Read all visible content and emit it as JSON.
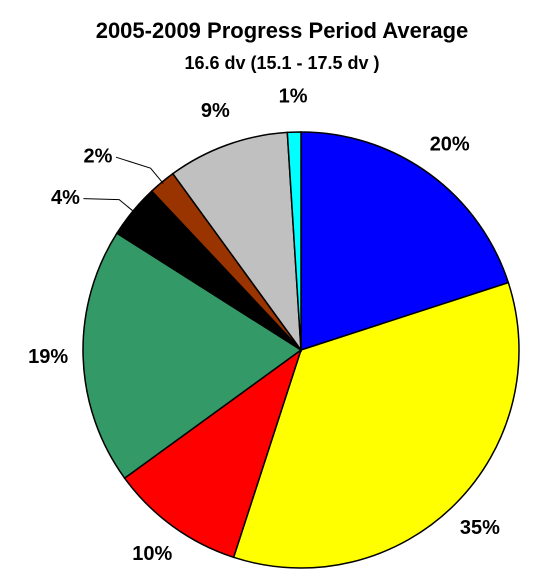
{
  "chart_data": {
    "type": "pie",
    "title": "2005-2009 Progress Period Average",
    "subtitle": "16.6 dv (15.1 - 17.5 dv )",
    "values": [
      20,
      35,
      10,
      19,
      4,
      2,
      9,
      1
    ],
    "value_labels": [
      "20%",
      "35%",
      "10%",
      "19%",
      "4%",
      "2%",
      "9%",
      "1%"
    ],
    "colors": [
      "#0000ff",
      "#ffff00",
      "#ff0000",
      "#339966",
      "#000000",
      "#993300",
      "#c0c0c0",
      "#00ffff"
    ]
  }
}
